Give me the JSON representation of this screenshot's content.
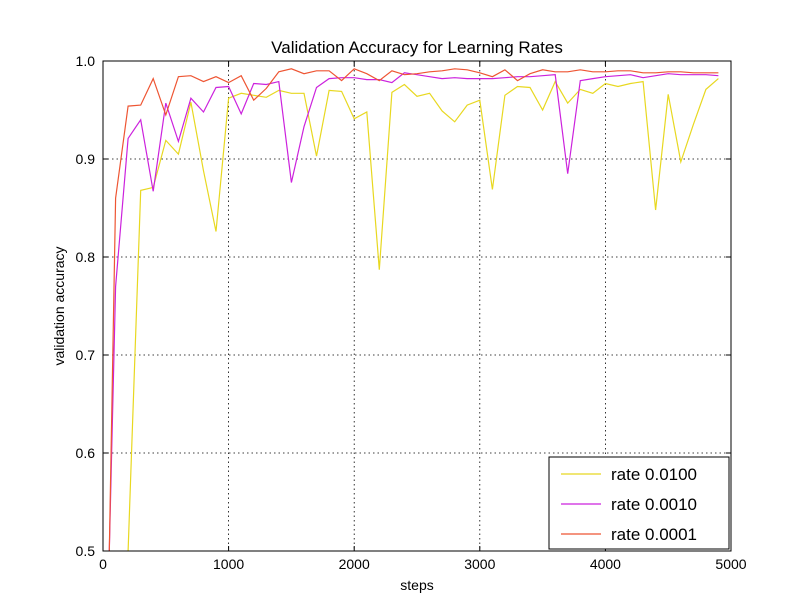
{
  "chart_data": {
    "type": "line",
    "title": "Validation Accuracy for Learning Rates",
    "xlabel": "steps",
    "ylabel": "validation accuracy",
    "xlim": [
      0,
      5000
    ],
    "ylim": [
      0.5,
      1.0
    ],
    "x_ticks": [
      0,
      1000,
      2000,
      3000,
      4000,
      5000
    ],
    "y_ticks": [
      0.5,
      0.6,
      0.7,
      0.8,
      0.9,
      1.0
    ],
    "x_tick_labels": [
      "0",
      "1000",
      "2000",
      "3000",
      "4000",
      "5000"
    ],
    "y_tick_labels": [
      "0.5",
      "0.6",
      "0.7",
      "0.8",
      "0.9",
      "1.0"
    ],
    "grid": true,
    "legend_position": "lower-right",
    "series": [
      {
        "name": "rate 0.0100",
        "color": "#e8d820",
        "x": [
          200,
          300,
          400,
          500,
          600,
          700,
          800,
          900,
          1000,
          1100,
          1200,
          1300,
          1400,
          1500,
          1600,
          1700,
          1800,
          1900,
          2000,
          2100,
          2200,
          2300,
          2400,
          2500,
          2600,
          2700,
          2800,
          2900,
          3000,
          3100,
          3200,
          3300,
          3400,
          3500,
          3600,
          3700,
          3800,
          3900,
          4000,
          4100,
          4200,
          4300,
          4400,
          4500,
          4600,
          4700,
          4800,
          4900
        ],
        "values": [
          0.5,
          0.868,
          0.871,
          0.919,
          0.905,
          0.958,
          0.888,
          0.826,
          0.962,
          0.967,
          0.965,
          0.963,
          0.97,
          0.967,
          0.967,
          0.903,
          0.97,
          0.969,
          0.941,
          0.948,
          0.787,
          0.968,
          0.976,
          0.964,
          0.967,
          0.949,
          0.938,
          0.955,
          0.96,
          0.869,
          0.965,
          0.974,
          0.973,
          0.95,
          0.979,
          0.957,
          0.971,
          0.967,
          0.977,
          0.974,
          0.977,
          0.979,
          0.848,
          0.966,
          0.897,
          0.935,
          0.971,
          0.982
        ]
      },
      {
        "name": "rate 0.0010",
        "color": "#cc22dd",
        "x": [
          50,
          100,
          200,
          300,
          400,
          500,
          600,
          700,
          800,
          900,
          1000,
          1100,
          1200,
          1300,
          1400,
          1500,
          1600,
          1700,
          1800,
          1900,
          2000,
          2100,
          2200,
          2300,
          2400,
          2500,
          2600,
          2700,
          2800,
          2900,
          3000,
          3100,
          3200,
          3300,
          3400,
          3500,
          3600,
          3700,
          3800,
          3900,
          4000,
          4100,
          4200,
          4300,
          4400,
          4500,
          4600,
          4700,
          4800,
          4900
        ],
        "values": [
          0.5,
          0.77,
          0.921,
          0.94,
          0.867,
          0.957,
          0.918,
          0.962,
          0.948,
          0.973,
          0.974,
          0.946,
          0.977,
          0.976,
          0.979,
          0.876,
          0.933,
          0.973,
          0.982,
          0.983,
          0.983,
          0.981,
          0.981,
          0.978,
          0.988,
          0.986,
          0.984,
          0.982,
          0.983,
          0.982,
          0.982,
          0.982,
          0.983,
          0.984,
          0.984,
          0.985,
          0.986,
          0.885,
          0.98,
          0.982,
          0.984,
          0.985,
          0.986,
          0.983,
          0.985,
          0.987,
          0.986,
          0.986,
          0.986,
          0.985
        ]
      },
      {
        "name": "rate 0.0001",
        "color": "#ee5533",
        "x": [
          50,
          100,
          200,
          300,
          400,
          500,
          600,
          700,
          800,
          900,
          1000,
          1100,
          1200,
          1300,
          1400,
          1500,
          1600,
          1700,
          1800,
          1900,
          2000,
          2100,
          2200,
          2300,
          2400,
          2500,
          2600,
          2700,
          2800,
          2900,
          3000,
          3100,
          3200,
          3300,
          3400,
          3500,
          3600,
          3700,
          3800,
          3900,
          4000,
          4100,
          4200,
          4300,
          4400,
          4500,
          4600,
          4700,
          4800,
          4900
        ],
        "values": [
          0.5,
          0.86,
          0.954,
          0.955,
          0.982,
          0.945,
          0.984,
          0.985,
          0.979,
          0.984,
          0.978,
          0.985,
          0.96,
          0.972,
          0.989,
          0.992,
          0.987,
          0.99,
          0.99,
          0.98,
          0.992,
          0.987,
          0.98,
          0.99,
          0.986,
          0.987,
          0.989,
          0.99,
          0.992,
          0.991,
          0.988,
          0.984,
          0.991,
          0.98,
          0.987,
          0.991,
          0.989,
          0.989,
          0.991,
          0.989,
          0.989,
          0.99,
          0.99,
          0.988,
          0.988,
          0.989,
          0.989,
          0.988,
          0.988,
          0.988
        ]
      }
    ]
  }
}
